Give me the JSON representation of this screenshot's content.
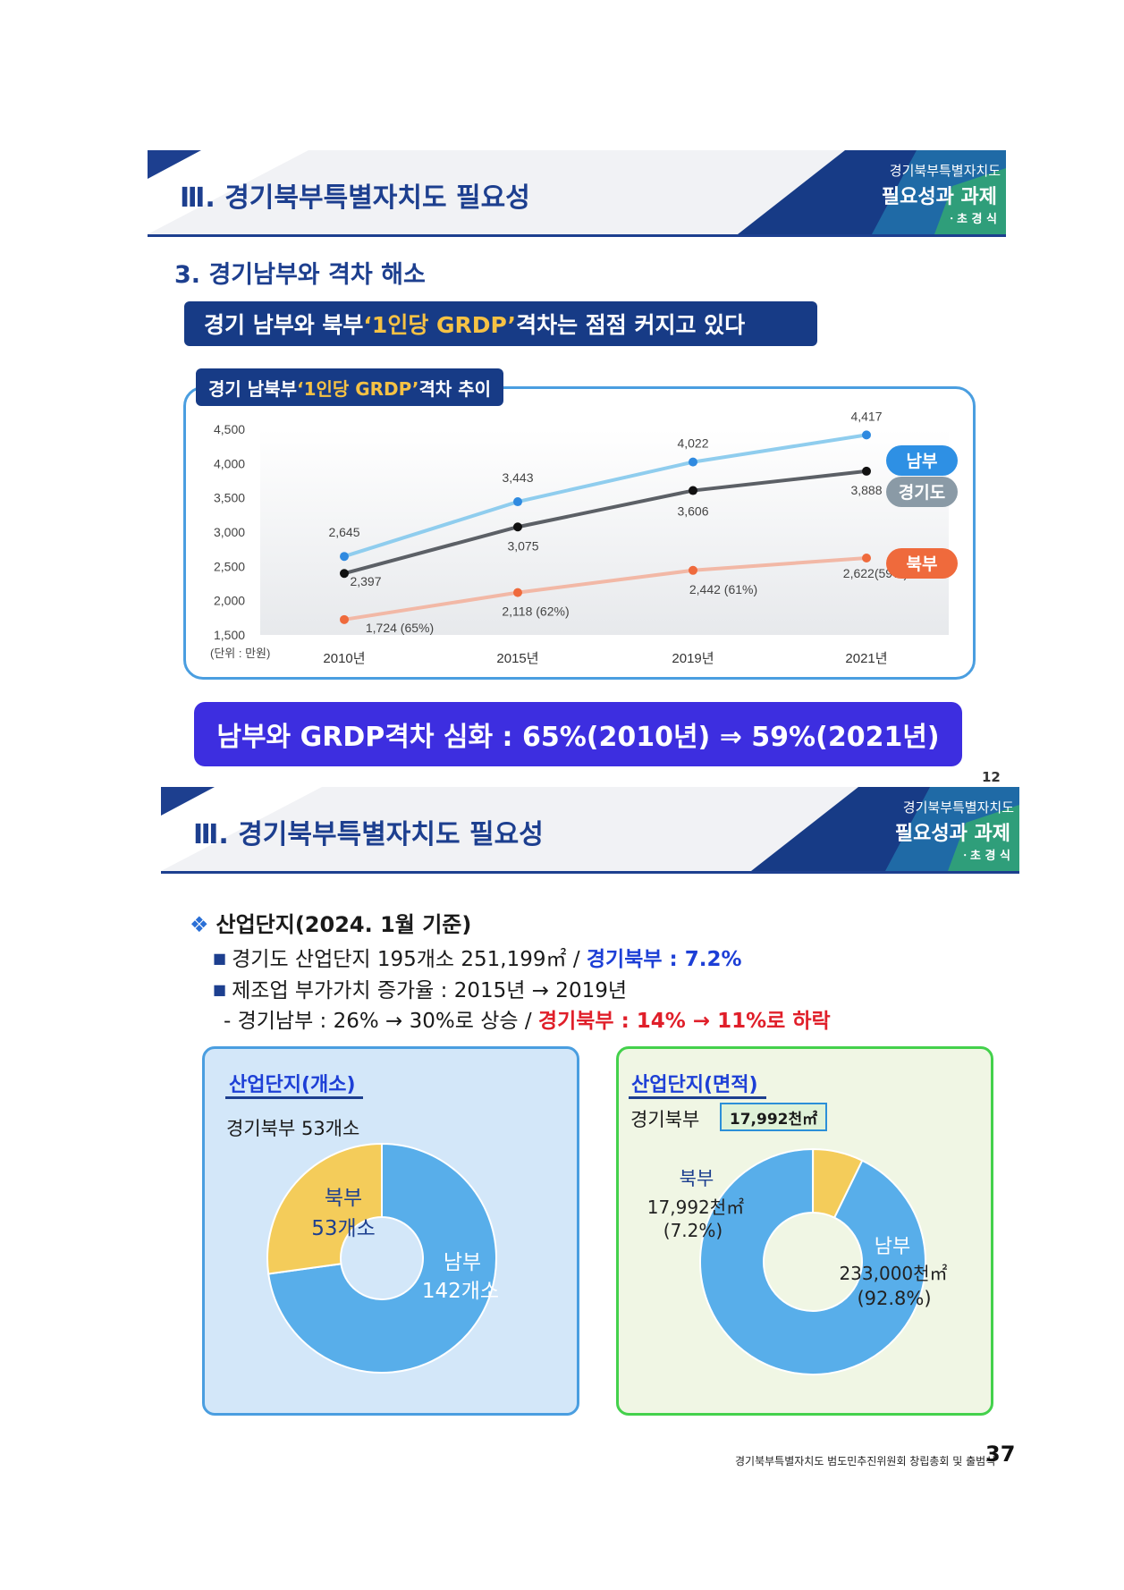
{
  "header": {
    "title": "Ⅲ.  경기북부특별자치도 필요성",
    "corner_line1": "경기북부특별자치도",
    "corner_line2": "필요성과 과제",
    "corner_line3": "ㆍ초 경 식"
  },
  "section1": {
    "title": "3. 경기남부와 격차 해소",
    "banner_pre": "경기 남부와 북부 ",
    "banner_highlight": "‘1인당 GRDP’",
    "banner_post": " 격차는 점점 커지고 있다",
    "chart_tab_pre": "경기 남북부 ",
    "chart_tab_highlight": "‘1인당 GRDP’",
    "chart_tab_post": " 격차 추이",
    "conclusion": "남부와 GRDP격차 심화 : 65%(2010년) ⇒ 59%(2021년)",
    "page_number": "12"
  },
  "chart_data": {
    "type": "line",
    "categories": [
      "2010년",
      "2015년",
      "2019년",
      "2021년"
    ],
    "ylim": [
      1500,
      4500
    ],
    "yticks": [
      "4,500",
      "4,000",
      "3,500",
      "3,000",
      "2,500",
      "2,000",
      "1,500"
    ],
    "unit_label": "(단위 : 만원)",
    "series": [
      {
        "name": "남부",
        "values": [
          2645,
          3443,
          4022,
          4417
        ],
        "labels": [
          "2,645",
          "3,443",
          "4,022",
          "4,417"
        ],
        "color": "#8fcdee",
        "dot": "#2f8ae0"
      },
      {
        "name": "경기도",
        "values": [
          2397,
          3075,
          3606,
          3888
        ],
        "labels": [
          "2,397",
          "3,075",
          "3,606",
          "3,888"
        ],
        "color": "#5c6066",
        "dot": "#111111"
      },
      {
        "name": "북부",
        "values": [
          1724,
          2118,
          2442,
          2622
        ],
        "labels": [
          "1,724 (65%)",
          "2,118 (62%)",
          "2,442 (61%)",
          "2,622(59%)"
        ],
        "color": "#f2b8a6",
        "dot": "#ef6a3c"
      }
    ],
    "legend_colors": {
      "남부": "#2e90e4",
      "경기도": "#8a9aa6",
      "북부": "#ef6a3c"
    }
  },
  "section2": {
    "heading": "산업단지(2024. 1월 기준)",
    "bullet1_pre": "경기도 산업단지 195개소 251,199㎡  / ",
    "bullet1_blue": "경기북부 : 7.2%",
    "bullet2": "제조업 부가가치 증가율 : 2015년 → 2019년",
    "bullet3_pre": "- 경기남부 : 26% → 30%로 상승 / ",
    "bullet3_red": "경기북부 : 14% → 11%로 하락"
  },
  "panel_count": {
    "title": "산업단지(개소)",
    "subtitle": "경기북부   53개소",
    "north_label": "북부",
    "north_value": "53개소",
    "south_label": "남부",
    "south_value": "142개소",
    "north_count": 53,
    "south_count": 142
  },
  "panel_area": {
    "title": "산업단지(면적)",
    "subtitle": "경기북부",
    "box_value": "17,992천㎡",
    "north_label": "북부",
    "north_value": "17,992천㎡",
    "north_pct": "(7.2%)",
    "south_label": "남부",
    "south_value": "233,000천㎡",
    "south_pct": "(92.8%)",
    "north_share": 7.2,
    "south_share": 92.8
  },
  "colors": {
    "navy": "#1d3f8f",
    "donut_blue": "#58aeea",
    "donut_yellow": "#f4cc5a"
  },
  "footer": {
    "text": "경기북부특별자치도 범도민추진위원회 창립총회 및 출범식",
    "page_number": "37"
  }
}
